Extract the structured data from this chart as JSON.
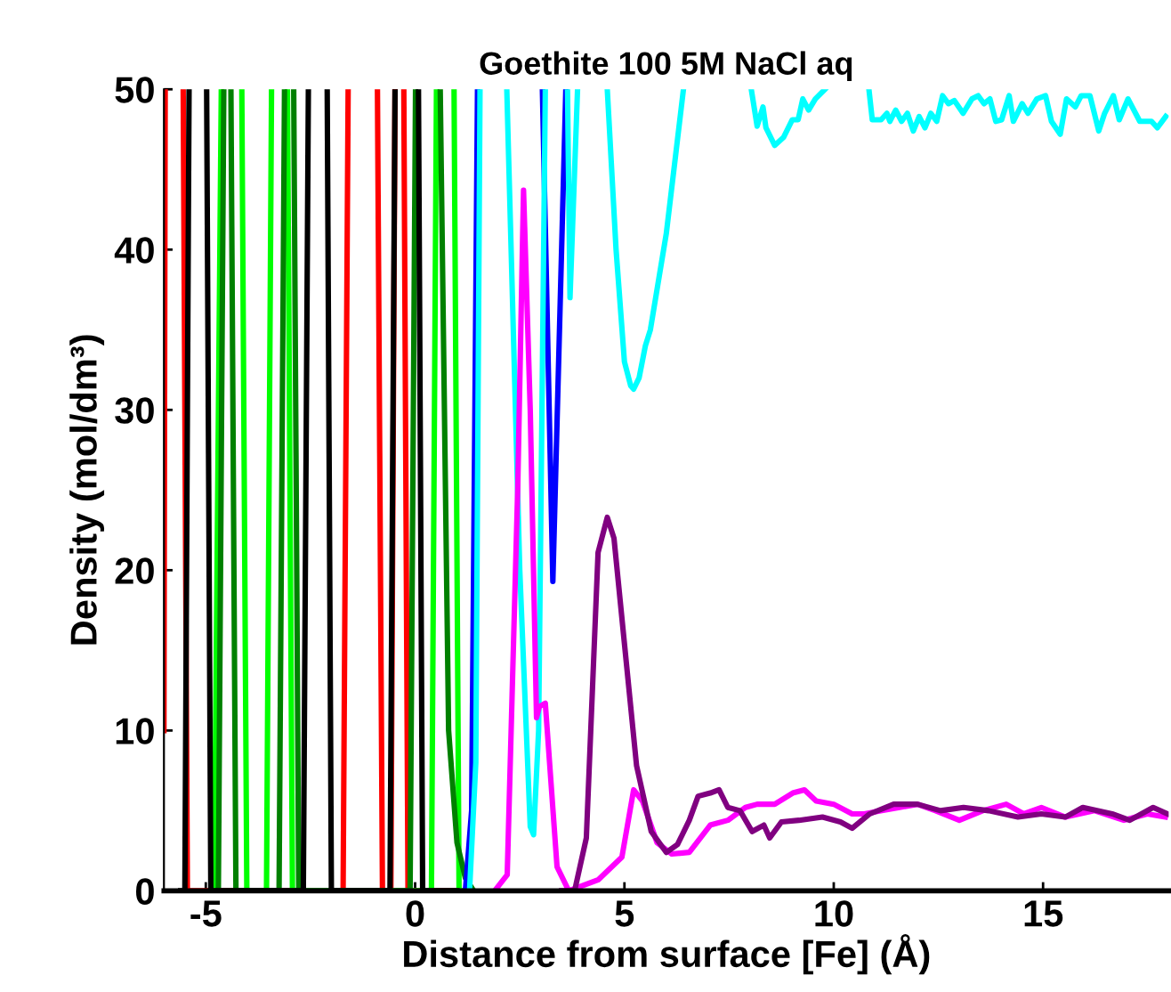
{
  "chart_data": {
    "type": "line",
    "title": "Goethite 100 5M NaCl aq",
    "xlabel": "Distance from surface [Fe] (Å)",
    "ylabel": "Density (mol/dm³)",
    "xlim": [
      -6,
      18
    ],
    "xticks": [
      -5,
      0,
      5,
      10,
      15
    ],
    "ylim": [
      0,
      50
    ],
    "yticks": [
      0,
      10,
      20,
      30,
      40,
      50
    ],
    "grid": false,
    "marker": "none",
    "line_style": "solid",
    "series": [
      {
        "color": "#ff0000",
        "x": [
          -6.0,
          -5.97,
          -5.75,
          -5.54,
          -5.44,
          -1.72,
          -1.6,
          -1.25,
          -0.9,
          -0.78,
          -0.58,
          -0.48,
          -0.38,
          -0.27,
          -0.17,
          1.0
        ],
        "values": [
          10,
          50,
          null,
          50,
          0,
          0,
          50,
          null,
          50,
          0,
          0,
          50,
          null,
          50,
          0,
          0
        ]
      },
      {
        "color": "#00ff00",
        "x": [
          -4.8,
          -4.63,
          -4.4,
          -4.14,
          -4.02,
          -3.55,
          -3.43,
          -3.25,
          -3.05,
          -2.93,
          0.39,
          0.51,
          0.72,
          0.93,
          1.05,
          1.3
        ],
        "values": [
          0,
          50,
          null,
          50,
          0,
          0,
          50,
          null,
          50,
          0,
          0,
          50,
          null,
          50,
          0,
          0
        ]
      },
      {
        "color": "#008000",
        "x": [
          -4.7,
          -4.57,
          -4.48,
          -4.4,
          -4.28,
          -3.25,
          -3.12,
          -3.0,
          -2.9,
          -2.78,
          -0.12,
          0.01,
          0.3,
          0.6,
          0.8,
          1.0,
          1.2,
          1.4
        ],
        "values": [
          0,
          50,
          null,
          50,
          0,
          0,
          50,
          null,
          50,
          0,
          0,
          50,
          null,
          50,
          10,
          3,
          0.8,
          0
        ]
      },
      {
        "color": "#000000",
        "x": [
          -5.6,
          -5.5,
          -5.4,
          -5.19,
          -4.98,
          -4.88,
          -2.67,
          -2.55,
          -2.33,
          -2.1,
          -2.0,
          -0.6,
          -0.48,
          -0.2,
          0.08,
          0.18,
          1.0
        ],
        "values": [
          0,
          0,
          50,
          null,
          50,
          0,
          0,
          50,
          null,
          50,
          0,
          0,
          50,
          null,
          50,
          0,
          0
        ]
      },
      {
        "color": "#0000ff",
        "x": [
          1.2,
          1.35,
          1.49,
          2.3,
          3.04,
          3.29,
          3.6
        ],
        "values": [
          0,
          5,
          50,
          null,
          50,
          19.3,
          50
        ]
      },
      {
        "color": "#00ffff",
        "x": [
          1.3,
          1.45,
          1.55,
          1.9,
          2.19,
          2.5,
          2.75,
          2.83,
          2.95,
          3.11,
          3.4,
          3.64,
          3.7,
          3.88,
          4.2,
          4.59,
          4.8,
          5.0,
          5.15,
          5.22,
          5.35,
          5.5,
          5.62,
          6.0,
          6.41,
          7.2,
          8.03,
          8.17,
          8.31,
          8.38,
          8.59,
          8.8,
          9.01,
          9.15,
          9.26,
          9.4,
          9.56,
          9.79,
          10.3,
          10.84,
          10.92,
          11.13,
          11.27,
          11.34,
          11.48,
          11.62,
          11.76,
          11.9,
          12.04,
          12.18,
          12.32,
          12.46,
          12.6,
          12.74,
          12.88,
          13.09,
          13.3,
          13.45,
          13.59,
          13.73,
          13.87,
          14.01,
          14.19,
          14.29,
          14.5,
          14.64,
          14.85,
          15.06,
          15.2,
          15.41,
          15.56,
          15.77,
          15.91,
          16.12,
          16.33,
          16.47,
          16.68,
          16.82,
          17.03,
          17.31,
          17.59,
          17.73,
          17.93
        ],
        "values": [
          0,
          8,
          50,
          null,
          50,
          20,
          4,
          3.5,
          10,
          50,
          null,
          50,
          37,
          50,
          null,
          50,
          40,
          33,
          31.5,
          31.3,
          32,
          34,
          35,
          41,
          50,
          null,
          50,
          47.7,
          48.9,
          47.6,
          46.5,
          47.0,
          48.1,
          48.1,
          49.4,
          48.7,
          49.4,
          50,
          null,
          50,
          48.1,
          48.1,
          48.5,
          48.0,
          48.7,
          48.0,
          48.5,
          47.4,
          48.3,
          47.6,
          48.5,
          48.0,
          49.6,
          49.1,
          49.3,
          48.5,
          49.4,
          49.6,
          49.1,
          49.4,
          48.0,
          48.1,
          49.6,
          48.0,
          49.1,
          48.5,
          49.4,
          49.6,
          48.0,
          47.2,
          49.4,
          48.9,
          49.6,
          49.6,
          47.4,
          48.5,
          49.6,
          48.1,
          49.4,
          48.0,
          48.0,
          47.6,
          48.3
        ]
      },
      {
        "color": "#ff00ff",
        "x": [
          1.9,
          2.2,
          2.45,
          2.59,
          2.75,
          2.9,
          2.97,
          3.11,
          3.39,
          3.67,
          4.38,
          4.94,
          5.22,
          5.43,
          5.78,
          6.13,
          6.55,
          7.05,
          7.47,
          7.89,
          8.17,
          8.59,
          9.02,
          9.3,
          9.58,
          10.0,
          10.44,
          10.73,
          11.15,
          11.57,
          12.0,
          12.43,
          13.0,
          13.56,
          14.12,
          14.54,
          14.96,
          15.53,
          16.23,
          16.93,
          17.49,
          17.92
        ],
        "values": [
          0,
          1,
          25,
          43.7,
          30,
          10.8,
          11.5,
          11.7,
          1.5,
          0,
          0.7,
          2.1,
          6.3,
          5.6,
          3.0,
          2.3,
          2.4,
          4.1,
          4.4,
          5.2,
          5.4,
          5.4,
          6.1,
          6.3,
          5.6,
          5.4,
          4.8,
          4.8,
          5.0,
          5.2,
          5.4,
          5.0,
          4.4,
          5.0,
          5.4,
          4.8,
          5.2,
          4.6,
          5.0,
          4.4,
          4.8,
          4.6
        ]
      },
      {
        "color": "#800080",
        "x": [
          3.5,
          3.81,
          4.09,
          4.37,
          4.59,
          4.75,
          4.94,
          5.29,
          5.64,
          6.0,
          6.27,
          6.55,
          6.76,
          7.05,
          7.26,
          7.47,
          7.76,
          8.05,
          8.33,
          8.47,
          8.75,
          9.17,
          9.73,
          10.16,
          10.44,
          10.86,
          11.43,
          12.0,
          12.55,
          13.1,
          13.7,
          14.4,
          14.96,
          15.53,
          15.95,
          16.65,
          17.07,
          17.63,
          17.97
        ],
        "values": [
          0,
          0,
          3.3,
          21.1,
          23.3,
          22,
          17.0,
          7.8,
          3.7,
          2.4,
          2.9,
          4.4,
          5.9,
          6.1,
          6.3,
          5.2,
          5.0,
          3.7,
          4.1,
          3.3,
          4.3,
          4.4,
          4.6,
          4.3,
          3.9,
          4.8,
          5.4,
          5.4,
          5.0,
          5.2,
          5.0,
          4.6,
          4.8,
          4.6,
          5.2,
          4.8,
          4.4,
          5.2,
          4.8
        ]
      }
    ]
  }
}
